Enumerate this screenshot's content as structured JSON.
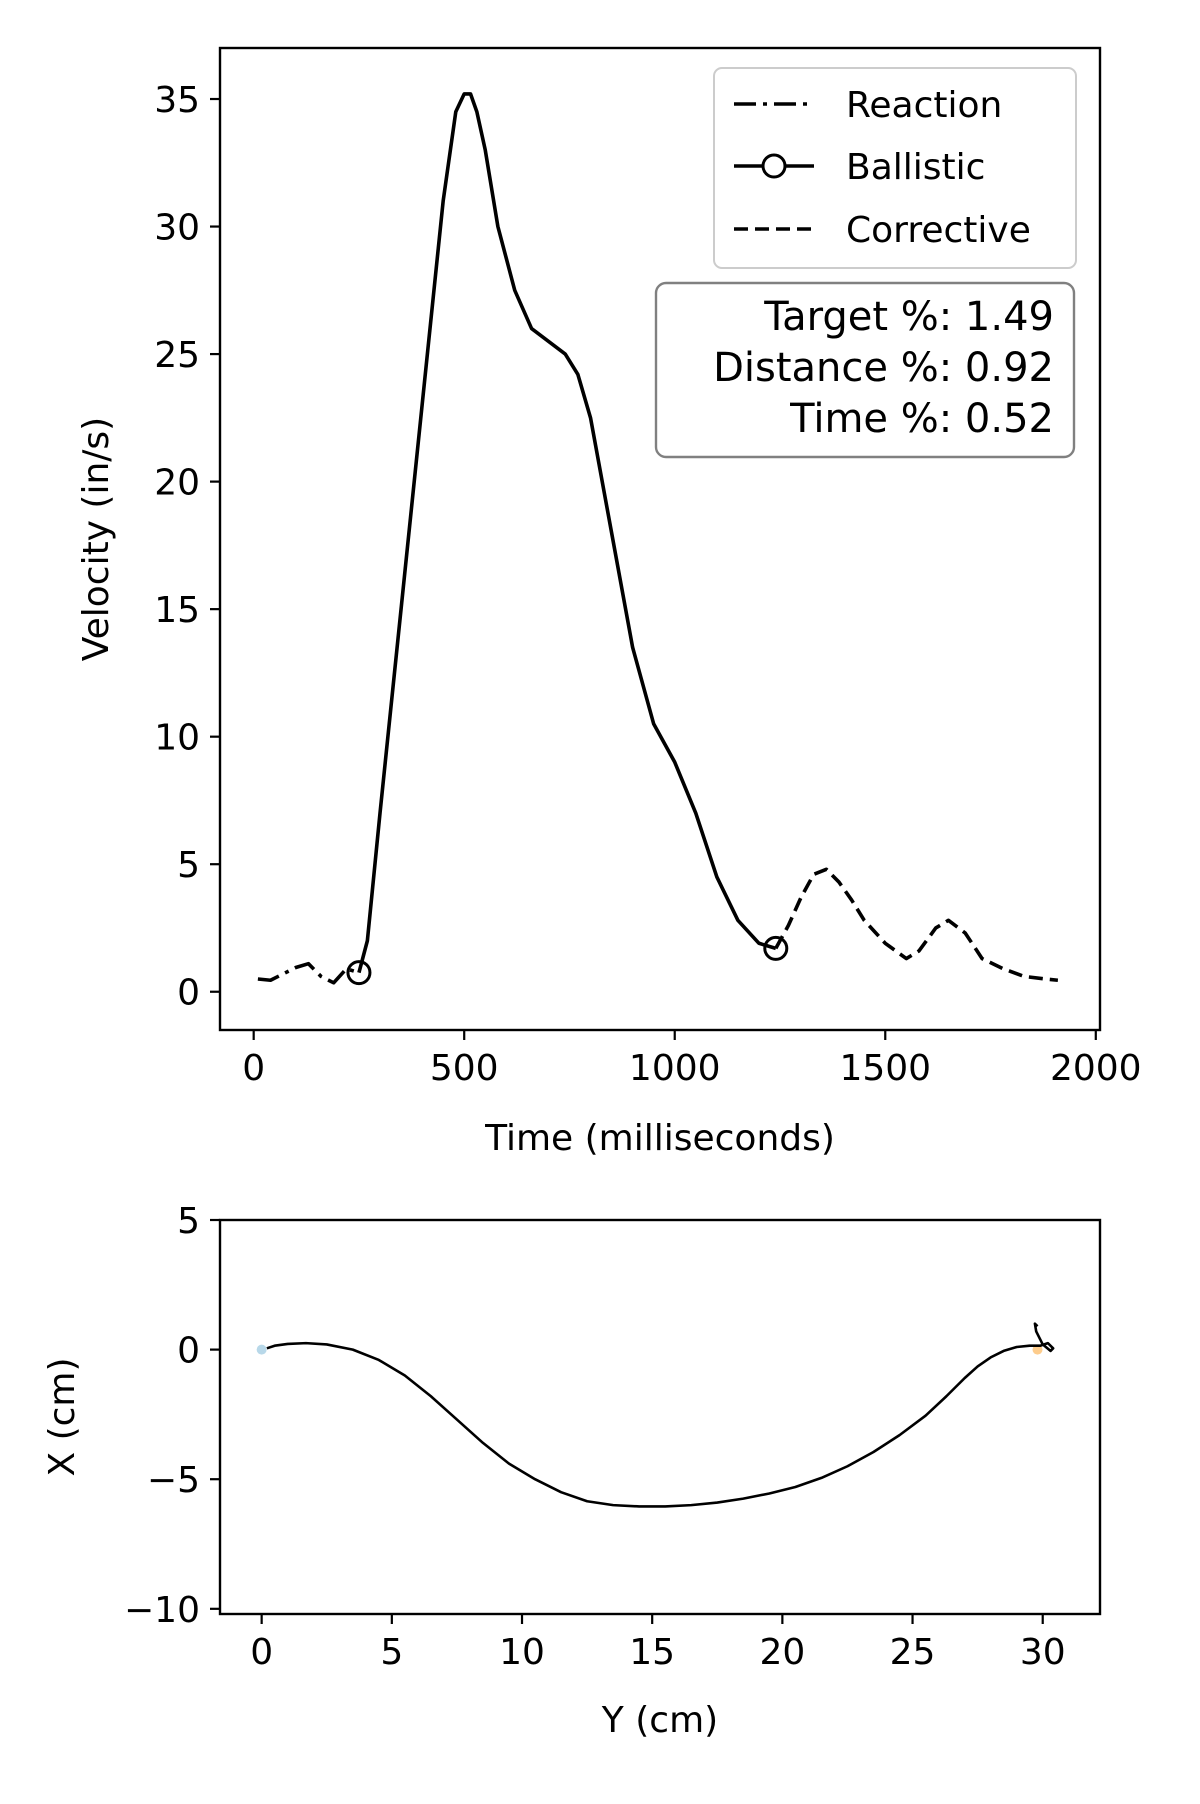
{
  "chart_data": [
    {
      "type": "line",
      "xlabel": "Time (milliseconds)",
      "ylabel": "Velocity (in/s)",
      "xlim": [
        -80,
        2010
      ],
      "ylim": [
        -1.5,
        37
      ],
      "xticks": [
        0,
        500,
        1000,
        1500,
        2000
      ],
      "yticks": [
        0,
        5,
        10,
        15,
        20,
        25,
        30,
        35
      ],
      "legend_position": "top-right",
      "series": [
        {
          "name": "Reaction",
          "style": "dashdot",
          "x": [
            10,
            40,
            70,
            100,
            130,
            160,
            190,
            220,
            250
          ],
          "y": [
            0.5,
            0.45,
            0.7,
            0.95,
            1.1,
            0.6,
            0.35,
            0.9,
            0.75
          ]
        },
        {
          "name": "Ballistic",
          "style": "solid",
          "marker_ends": true,
          "x": [
            250,
            270,
            300,
            350,
            400,
            450,
            480,
            500,
            515,
            530,
            550,
            580,
            620,
            660,
            700,
            740,
            770,
            800,
            850,
            900,
            950,
            1000,
            1050,
            1100,
            1150,
            1200,
            1240
          ],
          "y": [
            0.75,
            2,
            7,
            15,
            23,
            31,
            34.5,
            35.2,
            35.2,
            34.5,
            33,
            30,
            27.5,
            26,
            25.5,
            25,
            24.2,
            22.5,
            18,
            13.5,
            10.5,
            9,
            7,
            4.5,
            2.8,
            1.9,
            1.7
          ]
        },
        {
          "name": "Corrective",
          "style": "dashed",
          "x": [
            1240,
            1270,
            1300,
            1330,
            1360,
            1390,
            1420,
            1450,
            1500,
            1550,
            1580,
            1620,
            1650,
            1690,
            1730,
            1780,
            1830,
            1880,
            1910
          ],
          "y": [
            1.7,
            2.6,
            3.7,
            4.6,
            4.8,
            4.3,
            3.6,
            2.8,
            1.9,
            1.3,
            1.6,
            2.5,
            2.8,
            2.3,
            1.3,
            0.9,
            0.6,
            0.5,
            0.45
          ]
        }
      ],
      "annotation": {
        "lines": [
          "Target %: 1.49",
          "Distance %: 0.92",
          "Time %: 0.52"
        ],
        "position": "top-right"
      }
    },
    {
      "type": "line",
      "xlabel": "Y (cm)",
      "ylabel": "X (cm)",
      "xlim": [
        -1.6,
        32.2
      ],
      "ylim": [
        -10.2,
        5
      ],
      "xticks": [
        0,
        5,
        10,
        15,
        20,
        25,
        30
      ],
      "yticks": [
        -10,
        -5,
        0,
        5
      ],
      "series": [
        {
          "style": "solid",
          "x": [
            0.2,
            0.5,
            1.0,
            1.7,
            2.5,
            3.5,
            4.5,
            5.5,
            6.5,
            7.5,
            8.5,
            9.5,
            10.5,
            11.5,
            12.5,
            13.5,
            14.5,
            15.5,
            16.5,
            17.5,
            18.5,
            19.5,
            20.5,
            21.5,
            22.5,
            23.5,
            24.5,
            25.5,
            26.3,
            27.0,
            27.5,
            28.0,
            28.5,
            29.0,
            29.5,
            29.9,
            30.2,
            30.4,
            30.3,
            30.0,
            29.75,
            29.7,
            29.8
          ],
          "y": [
            0.05,
            0.15,
            0.22,
            0.25,
            0.2,
            0.0,
            -0.4,
            -1.0,
            -1.8,
            -2.7,
            -3.6,
            -4.4,
            -5.0,
            -5.5,
            -5.85,
            -6.0,
            -6.05,
            -6.05,
            -6.0,
            -5.9,
            -5.75,
            -5.55,
            -5.3,
            -4.95,
            -4.5,
            -3.95,
            -3.3,
            -2.55,
            -1.8,
            -1.1,
            -0.65,
            -0.3,
            -0.05,
            0.1,
            0.15,
            0.15,
            0.25,
            0.05,
            -0.05,
            0.2,
            0.7,
            1.0,
            0.9
          ]
        }
      ],
      "markers": [
        {
          "x": 0.0,
          "y": 0.0,
          "color": "#a6cee3"
        },
        {
          "x": 29.8,
          "y": 0.0,
          "color": "#fdbf6f"
        }
      ]
    }
  ]
}
